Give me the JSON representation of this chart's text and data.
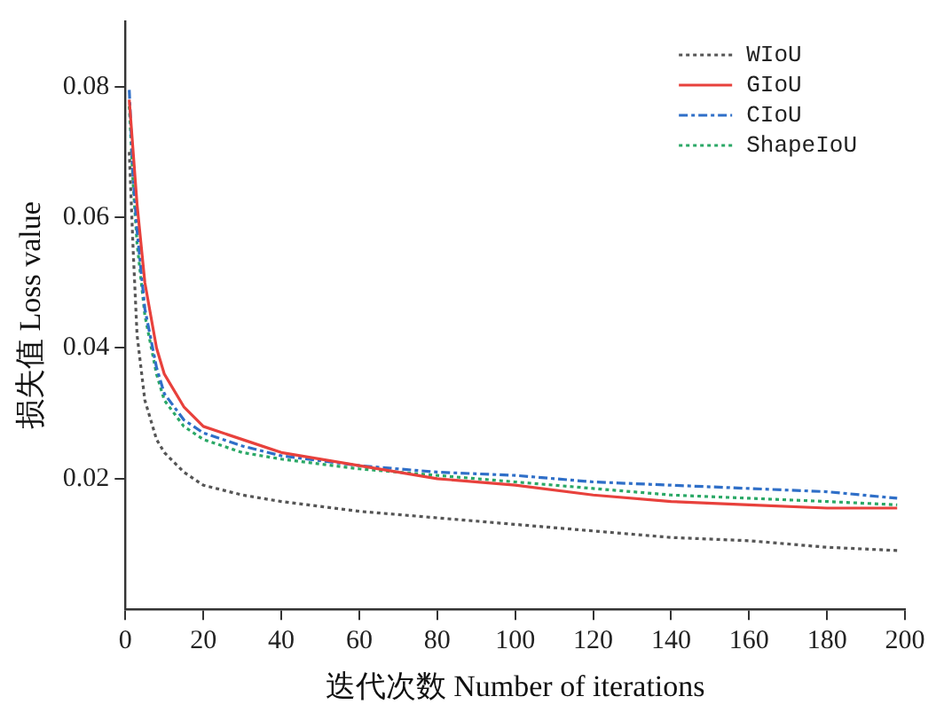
{
  "chart_data": {
    "type": "line",
    "xlabel": "迭代次数 Number of iterations",
    "ylabel": "损失值 Loss value",
    "xlim": [
      0,
      200
    ],
    "xticks": [
      0,
      20,
      40,
      60,
      80,
      100,
      120,
      140,
      160,
      180,
      200
    ],
    "ylim": [
      0,
      0.09
    ],
    "yticks": [
      0.02,
      0.04,
      0.06,
      0.08
    ],
    "grid": false,
    "legend": "top right",
    "marker": "none",
    "x": [
      1,
      2,
      3,
      5,
      8,
      10,
      15,
      20,
      30,
      40,
      60,
      80,
      100,
      120,
      140,
      160,
      180,
      198
    ],
    "series": [
      {
        "name": "WIoU",
        "color": "#555555",
        "line_style": "dotted",
        "values": [
          0.07,
          0.055,
          0.042,
          0.032,
          0.026,
          0.024,
          0.021,
          0.019,
          0.0175,
          0.0165,
          0.015,
          0.014,
          0.013,
          0.012,
          0.011,
          0.0105,
          0.0095,
          0.009
        ]
      },
      {
        "name": "GIoU",
        "color": "#e8413c",
        "line_style": "solid",
        "values": [
          0.078,
          0.07,
          0.062,
          0.05,
          0.04,
          0.036,
          0.031,
          0.028,
          0.026,
          0.024,
          0.022,
          0.02,
          0.019,
          0.0175,
          0.0165,
          0.016,
          0.0155,
          0.0155
        ]
      },
      {
        "name": "CIoU",
        "color": "#2f6fc8",
        "line_style": "dashed",
        "values": [
          0.0795,
          0.066,
          0.058,
          0.046,
          0.037,
          0.033,
          0.029,
          0.027,
          0.025,
          0.0235,
          0.022,
          0.021,
          0.0205,
          0.0195,
          0.019,
          0.0185,
          0.018,
          0.017
        ]
      },
      {
        "name": "ShapeIoU",
        "color": "#2aa866",
        "line_style": "dotted",
        "values": [
          0.077,
          0.065,
          0.056,
          0.045,
          0.036,
          0.032,
          0.028,
          0.026,
          0.024,
          0.023,
          0.0215,
          0.0205,
          0.0195,
          0.0185,
          0.0175,
          0.017,
          0.0165,
          0.016
        ]
      }
    ]
  }
}
